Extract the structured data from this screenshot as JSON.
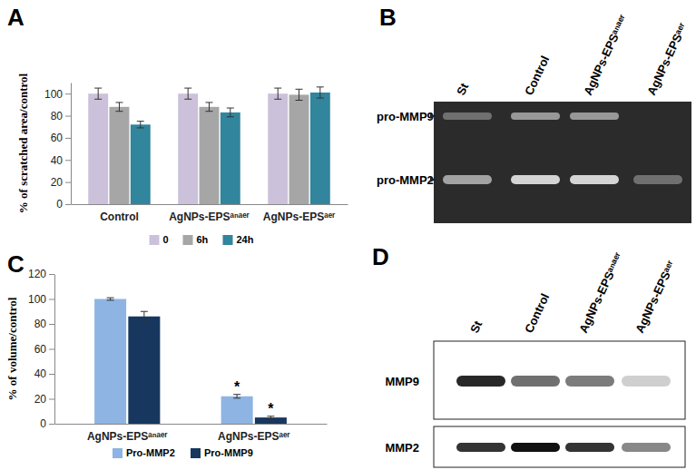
{
  "chart_data": [
    {
      "type": "bar",
      "title": "A",
      "y_label": "% of scratched area/control",
      "categories": [
        "Control",
        "AgNPs-EPSᵃⁿᵃᵉʳ",
        "AgNPs-EPSᵃᵉʳ"
      ],
      "series": [
        {
          "name": "0",
          "color": "#ccc1da",
          "values": [
            100,
            100,
            100
          ],
          "errors": [
            5,
            5,
            5
          ]
        },
        {
          "name": "6h",
          "color": "#a6a6a6",
          "values": [
            88,
            88,
            99
          ],
          "errors": [
            4,
            4,
            5
          ]
        },
        {
          "name": "24h",
          "color": "#31859c",
          "values": [
            72,
            83,
            101
          ],
          "errors": [
            3,
            4,
            5
          ]
        }
      ],
      "ylim": [
        0,
        110
      ],
      "yticks": [
        0,
        20,
        40,
        60,
        80,
        100
      ],
      "grid": false,
      "legend": "bottom"
    },
    {
      "type": "bar",
      "title": "C",
      "y_label": "% of volume/control",
      "categories": [
        "AgNPs-EPSᵃⁿᵃᵉʳ",
        "AgNPs-EPSᵃᵉʳ"
      ],
      "series": [
        {
          "name": "Pro-MMP2",
          "color": "#8eb4e3",
          "values": [
            100,
            22
          ],
          "errors": [
            1,
            1.5
          ]
        },
        {
          "name": "Pro-MMP9",
          "color": "#17375e",
          "values": [
            86,
            5
          ],
          "errors": [
            4,
            1
          ]
        }
      ],
      "annotations": [
        {
          "text": "*",
          "series": 0,
          "category": 1
        },
        {
          "text": "*",
          "series": 1,
          "category": 1
        }
      ],
      "ylim": [
        0,
        120
      ],
      "yticks": [
        0,
        20,
        40,
        60,
        80,
        100,
        120
      ],
      "grid": false,
      "legend": "bottom"
    }
  ],
  "blots": [
    {
      "title": "B",
      "lanes": [
        "St",
        "Control",
        "AgNPs-EPSᵃⁿᵃᵉʳ",
        "AgNPs-EPSᵃᵉʳ"
      ],
      "bands": [
        {
          "label": "pro-MMP9",
          "intensity": [
            0.35,
            0.55,
            0.55,
            0
          ]
        },
        {
          "label": "pro-MMP2",
          "intensity": [
            0.6,
            0.85,
            0.85,
            0.35
          ]
        }
      ]
    },
    {
      "title": "D",
      "lanes": [
        "St",
        "Control",
        "AgNPs-EPSᵃⁿᵃᵉʳ",
        "AgNPs-EPSᵃᵉʳ"
      ],
      "bands": [
        {
          "label": "MMP9",
          "intensity": [
            0.9,
            0.6,
            0.55,
            0.2
          ]
        },
        {
          "label": "MMP2",
          "intensity": [
            0.85,
            1.0,
            0.85,
            0.5
          ]
        }
      ]
    }
  ]
}
